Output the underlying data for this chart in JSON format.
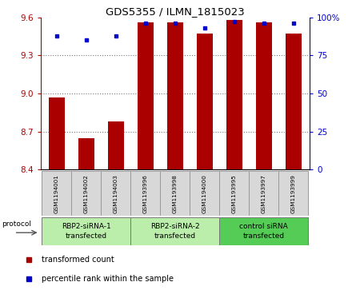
{
  "title": "GDS5355 / ILMN_1815023",
  "samples": [
    "GSM1194001",
    "GSM1194002",
    "GSM1194003",
    "GSM1193996",
    "GSM1193998",
    "GSM1194000",
    "GSM1193995",
    "GSM1193997",
    "GSM1193999"
  ],
  "red_values": [
    8.97,
    8.65,
    8.78,
    9.56,
    9.56,
    9.47,
    9.58,
    9.56,
    9.47
  ],
  "blue_values": [
    88,
    85,
    88,
    96,
    96,
    93,
    97,
    96,
    96
  ],
  "group_info": [
    {
      "label": "RBP2-siRNA-1\ntransfected",
      "start": 0,
      "end": 2,
      "color": "#bbeeaa"
    },
    {
      "label": "RBP2-siRNA-2\ntransfected",
      "start": 3,
      "end": 5,
      "color": "#bbeeaa"
    },
    {
      "label": "control siRNA\ntransfected",
      "start": 6,
      "end": 8,
      "color": "#55cc55"
    }
  ],
  "ylim_left": [
    8.4,
    9.6
  ],
  "ylim_right": [
    0,
    100
  ],
  "yticks_left": [
    8.4,
    8.7,
    9.0,
    9.3,
    9.6
  ],
  "yticks_right": [
    0,
    25,
    50,
    75,
    100
  ],
  "red_color": "#aa0000",
  "blue_color": "#0000cc",
  "bar_width": 0.55,
  "grid_color": "#777777",
  "legend_red": "transformed count",
  "legend_blue": "percentile rank within the sample",
  "protocol_label": "protocol"
}
